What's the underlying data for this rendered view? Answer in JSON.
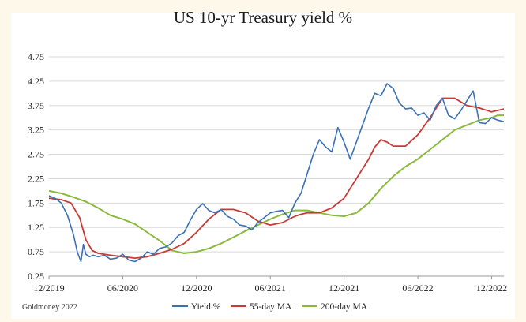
{
  "chart_data": {
    "type": "line",
    "title": "US 10-yr Treasury yield %",
    "xlabel": "",
    "ylabel": "",
    "ylim": [
      0.25,
      4.75
    ],
    "yticks": [
      "4.75",
      "4.25",
      "3.75",
      "3.25",
      "2.75",
      "2.25",
      "1.75",
      "1.25",
      "0.75",
      "0.25"
    ],
    "xticks": [
      "12/2019",
      "06/2020",
      "12/2020",
      "06/2021",
      "12/2021",
      "06/2022",
      "12/2022"
    ],
    "x_index_range": [
      0,
      37
    ],
    "grid": "horizontal",
    "legend_position": "bottom",
    "colors": {
      "yield": "#3b70b6",
      "ma55": "#c83a35",
      "ma200": "#8ab93e"
    },
    "series": [
      {
        "name": "Yield %",
        "x": [
          0,
          0.5,
          1,
          1.5,
          2,
          2.3,
          2.6,
          2.8,
          3,
          3.3,
          3.6,
          4,
          4.5,
          5,
          5.5,
          6,
          6.5,
          7,
          7.5,
          8,
          8.5,
          9,
          9.5,
          10,
          10.5,
          11,
          11.5,
          12,
          12.5,
          13,
          13.5,
          14,
          14.5,
          15,
          15.5,
          16,
          16.5,
          17,
          17.5,
          18,
          18.5,
          19,
          19.5,
          20,
          20.5,
          21,
          21.5,
          22,
          22.5,
          23,
          23.5,
          24,
          24.5,
          25,
          25.5,
          26,
          26.5,
          27,
          27.5,
          28,
          28.5,
          29,
          29.5,
          30,
          30.5,
          31,
          31.5,
          32,
          32.5,
          33,
          33.5,
          34,
          34.5,
          35,
          35.5,
          36,
          36.5,
          37
        ],
        "values": [
          1.9,
          1.85,
          1.75,
          1.5,
          1.1,
          0.75,
          0.55,
          0.9,
          0.7,
          0.65,
          0.68,
          0.65,
          0.68,
          0.6,
          0.62,
          0.7,
          0.58,
          0.55,
          0.62,
          0.75,
          0.7,
          0.82,
          0.85,
          0.93,
          1.08,
          1.15,
          1.4,
          1.62,
          1.74,
          1.6,
          1.55,
          1.62,
          1.48,
          1.42,
          1.3,
          1.28,
          1.2,
          1.35,
          1.45,
          1.55,
          1.58,
          1.6,
          1.45,
          1.75,
          1.95,
          2.35,
          2.75,
          3.05,
          2.9,
          2.8,
          3.3,
          3.0,
          2.65,
          3.0,
          3.35,
          3.7,
          4.0,
          3.95,
          4.2,
          4.1,
          3.8,
          3.68,
          3.7,
          3.55,
          3.6,
          3.45,
          3.75,
          3.9,
          3.55,
          3.48,
          3.65,
          3.85,
          4.05,
          3.4,
          3.38,
          3.5,
          3.45,
          3.42
        ]
      },
      {
        "name": "55-day MA",
        "x": [
          0,
          1,
          1.8,
          2.5,
          3,
          3.5,
          4,
          5,
          6,
          7,
          8,
          9,
          10,
          11,
          12,
          13,
          14,
          15,
          16,
          17,
          18,
          19,
          20,
          20.5,
          21,
          22,
          23,
          24,
          25,
          26,
          26.5,
          27,
          27.5,
          28,
          29,
          30,
          31,
          32,
          33,
          34,
          35,
          36,
          37
        ],
        "values": [
          1.85,
          1.82,
          1.75,
          1.45,
          1.0,
          0.78,
          0.72,
          0.68,
          0.65,
          0.62,
          0.65,
          0.72,
          0.8,
          0.92,
          1.15,
          1.42,
          1.62,
          1.62,
          1.55,
          1.38,
          1.3,
          1.35,
          1.48,
          1.52,
          1.55,
          1.55,
          1.65,
          1.85,
          2.25,
          2.65,
          2.9,
          3.05,
          3.0,
          2.92,
          2.92,
          3.15,
          3.5,
          3.9,
          3.9,
          3.75,
          3.7,
          3.62,
          3.68
        ]
      },
      {
        "name": "200-day MA",
        "x": [
          0,
          1,
          2,
          3,
          4,
          5,
          6,
          7,
          8,
          9,
          9.5,
          10,
          11,
          12,
          13,
          14,
          15,
          16,
          17,
          18,
          19,
          20,
          21,
          22,
          23,
          24,
          25,
          26,
          27,
          28,
          29,
          30,
          31,
          32,
          33,
          34,
          35,
          36,
          36.5,
          37
        ],
        "values": [
          2.0,
          1.95,
          1.87,
          1.78,
          1.65,
          1.5,
          1.42,
          1.32,
          1.15,
          0.98,
          0.88,
          0.78,
          0.72,
          0.75,
          0.82,
          0.92,
          1.05,
          1.18,
          1.3,
          1.42,
          1.52,
          1.6,
          1.6,
          1.55,
          1.5,
          1.48,
          1.55,
          1.75,
          2.05,
          2.3,
          2.5,
          2.65,
          2.85,
          3.05,
          3.25,
          3.35,
          3.45,
          3.5,
          3.55,
          3.55
        ]
      }
    ]
  },
  "footer": {
    "source": "Goldmoney 2022"
  }
}
